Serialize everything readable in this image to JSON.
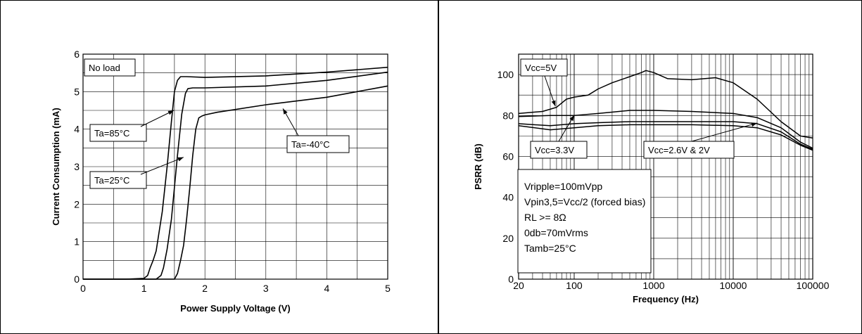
{
  "chart_data": [
    {
      "type": "line",
      "title": "",
      "xlabel": "Power Supply Voltage (V)",
      "ylabel": "Current Consumption (mA)",
      "xlim": [
        0,
        5
      ],
      "ylim": [
        0,
        6
      ],
      "x_ticks": [
        "0",
        "1",
        "2",
        "3",
        "4",
        "5"
      ],
      "y_ticks": [
        "0",
        "1",
        "2",
        "3",
        "4",
        "5",
        "6"
      ],
      "grid": true,
      "series": [
        {
          "name": "Ta=85°C",
          "x": [
            0,
            0.7,
            1.0,
            1.06,
            1.1,
            1.15,
            1.2,
            1.3,
            1.38,
            1.45,
            1.5,
            1.55,
            1.6,
            1.7,
            2.0,
            3.0,
            4.0,
            5.0
          ],
          "y": [
            0,
            0,
            0.02,
            0.1,
            0.3,
            0.5,
            0.75,
            1.8,
            3.0,
            4.2,
            5.0,
            5.3,
            5.4,
            5.4,
            5.38,
            5.42,
            5.52,
            5.65
          ]
        },
        {
          "name": "Ta=25°C",
          "x": [
            0,
            1.2,
            1.28,
            1.32,
            1.38,
            1.45,
            1.55,
            1.62,
            1.68,
            1.72,
            1.8,
            2.0,
            3.0,
            4.0,
            5.0
          ],
          "y": [
            0,
            0,
            0.1,
            0.3,
            0.8,
            1.6,
            3.3,
            4.4,
            4.95,
            5.08,
            5.1,
            5.1,
            5.15,
            5.3,
            5.52
          ]
        },
        {
          "name": "Ta=-40°C",
          "x": [
            0,
            1.5,
            1.55,
            1.6,
            1.65,
            1.7,
            1.75,
            1.8,
            1.85,
            1.9,
            1.95,
            2.0,
            2.2,
            3.0,
            4.0,
            5.0
          ],
          "y": [
            0,
            0,
            0.15,
            0.5,
            0.9,
            1.6,
            2.4,
            3.3,
            4.0,
            4.3,
            4.35,
            4.38,
            4.45,
            4.65,
            4.85,
            5.15
          ]
        }
      ],
      "annotations": [
        "No load",
        "Ta=85°C",
        "Ta=25°C",
        "Ta=-40°C"
      ]
    },
    {
      "type": "line",
      "title": "",
      "xlabel": "Frequency (Hz)",
      "ylabel": "PSRR (dB)",
      "x_scale": "log",
      "xlim": [
        20,
        100000
      ],
      "ylim": [
        0,
        110
      ],
      "x_ticks": [
        "20",
        "100",
        "1000",
        "10000",
        "100000"
      ],
      "y_ticks": [
        "0",
        "20",
        "40",
        "60",
        "80",
        "100"
      ],
      "grid": true,
      "series": [
        {
          "name": "Vcc=5V",
          "x": [
            20,
            40,
            60,
            80,
            100,
            150,
            200,
            300,
            500,
            700,
            800,
            1000,
            1500,
            3000,
            6000,
            10000,
            20000,
            40000,
            70000,
            100000
          ],
          "y": [
            81,
            82,
            84,
            88,
            89,
            90,
            93,
            96,
            99,
            101,
            102,
            101,
            98,
            97.5,
            98.5,
            96,
            88,
            77,
            70,
            69
          ]
        },
        {
          "name": "Vcc=3.3V",
          "x": [
            20,
            50,
            100,
            200,
            500,
            1000,
            3000,
            10000,
            20000,
            40000,
            70000,
            100000
          ],
          "y": [
            79.5,
            80,
            80,
            81,
            82.5,
            82.5,
            82,
            81,
            79,
            74,
            67,
            64
          ]
        },
        {
          "name": "Vcc=2.6V & 2V",
          "x": [
            20,
            50,
            100,
            200,
            500,
            1000,
            3000,
            10000,
            20000,
            40000,
            70000,
            100000
          ],
          "y": [
            76,
            75,
            76,
            76.5,
            77,
            77,
            77,
            77,
            76,
            72,
            66,
            63.5
          ]
        },
        {
          "name": "",
          "x": [
            20,
            50,
            100,
            200,
            500,
            1000,
            3000,
            10000,
            20000,
            40000,
            70000,
            100000
          ],
          "y": [
            75,
            73,
            74,
            75,
            75.5,
            75.5,
            75.5,
            75,
            74,
            70.5,
            65.5,
            63
          ]
        }
      ],
      "annotations": [
        "Vcc=5V",
        "Vcc=3.3V",
        "Vcc=2.6V & 2V"
      ],
      "conditions": [
        "Vripple=100mVpp",
        "Vpin3,5=Vcc/2 (forced bias)",
        "RL >= 8Ω",
        "0db=70mVrms",
        "Tamb=25°C"
      ]
    }
  ]
}
